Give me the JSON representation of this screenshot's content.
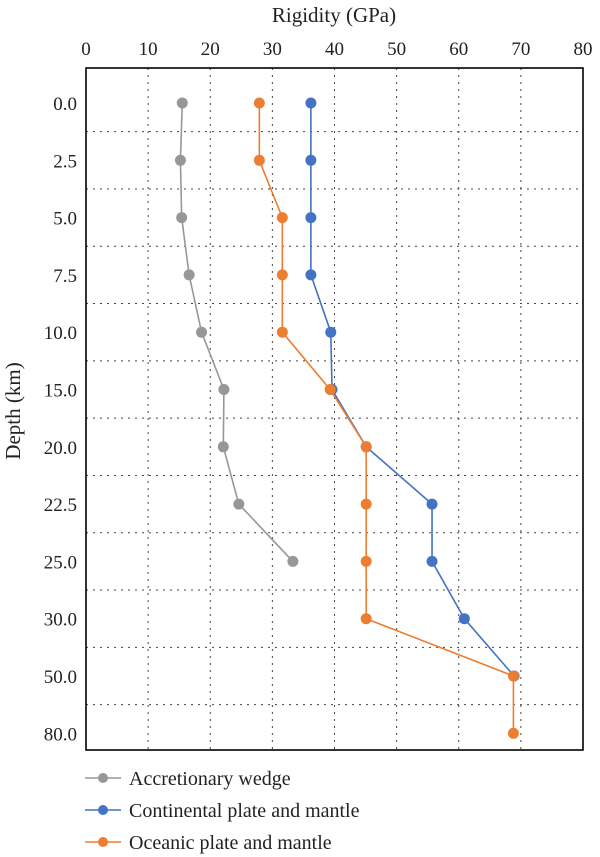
{
  "chart_data": {
    "type": "line",
    "xlabel": "Rigidity (GPa)",
    "ylabel": "Depth (km)",
    "xlim": [
      0,
      80
    ],
    "x_ticks": [
      "0",
      "10",
      "20",
      "30",
      "40",
      "50",
      "60",
      "70",
      "80"
    ],
    "x_axis_position": "top",
    "categories": [
      "0.0",
      "2.5",
      "5.0",
      "7.5",
      "10.0",
      "15.0",
      "20.0",
      "22.5",
      "25.0",
      "30.0",
      "50.0",
      "80.0"
    ],
    "grid": true,
    "legend_position": "bottom",
    "series": [
      {
        "name": "Accretionary wedge",
        "color": "#979797",
        "values": [
          15.5,
          15.2,
          15.4,
          16.6,
          18.6,
          22.2,
          22.1,
          24.6,
          33.3,
          null,
          null,
          null
        ]
      },
      {
        "name": "Continental plate and mantle",
        "color": "#4472c4",
        "values": [
          36.2,
          36.2,
          36.2,
          36.2,
          39.4,
          39.6,
          45.1,
          55.7,
          55.7,
          60.9,
          68.9,
          null
        ]
      },
      {
        "name": "Oceanic plate and mantle",
        "color": "#ed7d31",
        "values": [
          27.9,
          27.9,
          31.6,
          31.6,
          31.6,
          39.3,
          45.1,
          45.1,
          45.1,
          45.1,
          68.8,
          68.8
        ]
      }
    ]
  }
}
